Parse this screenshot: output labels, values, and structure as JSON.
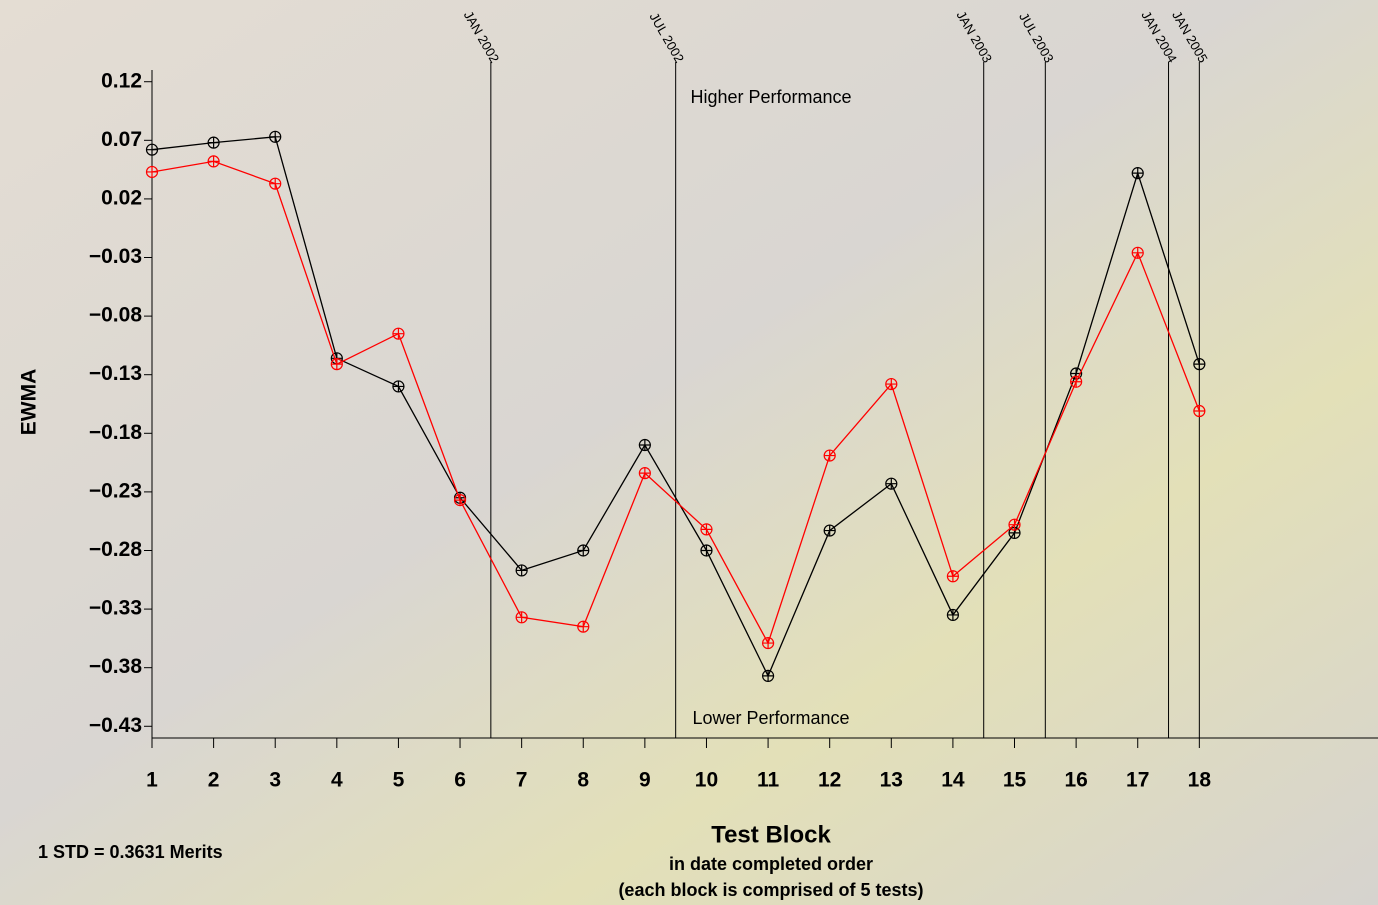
{
  "chart_data": {
    "type": "line",
    "y_label": "EWMA",
    "x_label": "Test Block",
    "x_sublabels": [
      "in date completed order",
      "(each block is comprised of 5 tests)"
    ],
    "note": "1 STD =  0.3631 Merits",
    "annotations": [
      "Higher Performance",
      "Lower Performance"
    ],
    "x": [
      1,
      2,
      3,
      4,
      5,
      6,
      7,
      8,
      9,
      10,
      11,
      12,
      13,
      14,
      15,
      16,
      17,
      18
    ],
    "xlim": [
      1,
      20.9
    ],
    "xticks": [
      1,
      2,
      3,
      4,
      5,
      6,
      7,
      8,
      9,
      10,
      11,
      12,
      13,
      14,
      15,
      16,
      17,
      18
    ],
    "ylim": [
      -0.44,
      0.13
    ],
    "yticks": [
      0.12,
      0.07,
      0.02,
      {
        "value": -0.03,
        "label": "−0.03"
      },
      {
        "value": -0.08,
        "label": "−0.08"
      },
      {
        "value": -0.13,
        "label": "−0.13"
      },
      {
        "value": -0.18,
        "label": "−0.18"
      },
      {
        "value": -0.23,
        "label": "−0.23"
      },
      {
        "value": -0.28,
        "label": "−0.28"
      },
      {
        "value": -0.33,
        "label": "−0.33"
      },
      {
        "value": -0.38,
        "label": "−0.38"
      },
      {
        "value": -0.43,
        "label": "−0.43"
      }
    ],
    "events": [
      {
        "x": 6.5,
        "label": "JAN 2002"
      },
      {
        "x": 9.5,
        "label": "JUL 2002"
      },
      {
        "x": 14.5,
        "label": "JAN 2003"
      },
      {
        "x": 15.5,
        "label": "JUL 2003"
      },
      {
        "x": 17.5,
        "label": "JAN 2004"
      },
      {
        "x": 18,
        "label": "JAN 2005"
      }
    ],
    "series": [
      {
        "color": "#000000",
        "values": [
          0.062,
          0.068,
          0.073,
          -0.116,
          -0.14,
          -0.235,
          -0.297,
          -0.28,
          -0.19,
          -0.28,
          -0.387,
          -0.263,
          -0.223,
          -0.335,
          -0.265,
          -0.129,
          0.042,
          -0.121
        ]
      },
      {
        "color": "#ff0000",
        "values": [
          0.043,
          0.052,
          0.033,
          -0.121,
          -0.095,
          -0.237,
          -0.337,
          -0.345,
          -0.214,
          -0.262,
          -0.359,
          -0.199,
          -0.138,
          -0.302,
          -0.258,
          -0.136,
          -0.026,
          -0.161
        ]
      }
    ]
  }
}
